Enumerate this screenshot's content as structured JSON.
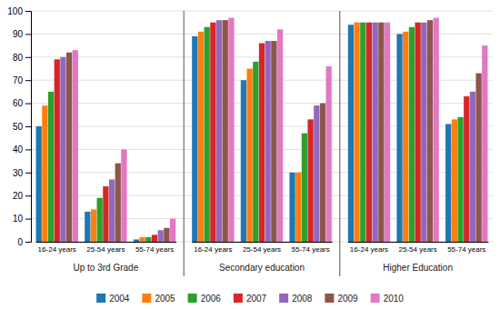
{
  "chart_data": {
    "type": "bar",
    "groups": [
      {
        "label": "Up to 3rd Grade",
        "categories": [
          "16-24 years",
          "25-54 years",
          "55-74 years"
        ]
      },
      {
        "label": "Secondary education",
        "categories": [
          "16-24 years",
          "25-54 years",
          "55-74 years"
        ]
      },
      {
        "label": "Higher Education",
        "categories": [
          "16-24 years",
          "25-54 years",
          "55-74 years"
        ]
      }
    ],
    "series": [
      {
        "name": "2004",
        "values": [
          50,
          13,
          1,
          89,
          70,
          30,
          94,
          90,
          51
        ]
      },
      {
        "name": "2005",
        "values": [
          59,
          14,
          2,
          91,
          75,
          30,
          95,
          91,
          53
        ]
      },
      {
        "name": "2006",
        "values": [
          65,
          19,
          2,
          93,
          78,
          47,
          95,
          93,
          54
        ]
      },
      {
        "name": "2007",
        "values": [
          79,
          24,
          3,
          95,
          86,
          53,
          95,
          95,
          63
        ]
      },
      {
        "name": "2008",
        "values": [
          80,
          27,
          5,
          96,
          87,
          59,
          95,
          95,
          65
        ]
      },
      {
        "name": "2009",
        "values": [
          82,
          34,
          6,
          96,
          87,
          60,
          95,
          96,
          73
        ]
      },
      {
        "name": "2010",
        "values": [
          83,
          40,
          10,
          97,
          92,
          76,
          95,
          97,
          85
        ]
      }
    ],
    "ylim": [
      0,
      100
    ],
    "yticks": [
      0,
      10,
      20,
      30,
      40,
      50,
      60,
      70,
      80,
      90,
      100
    ],
    "grid": true,
    "legend": "bottom"
  }
}
